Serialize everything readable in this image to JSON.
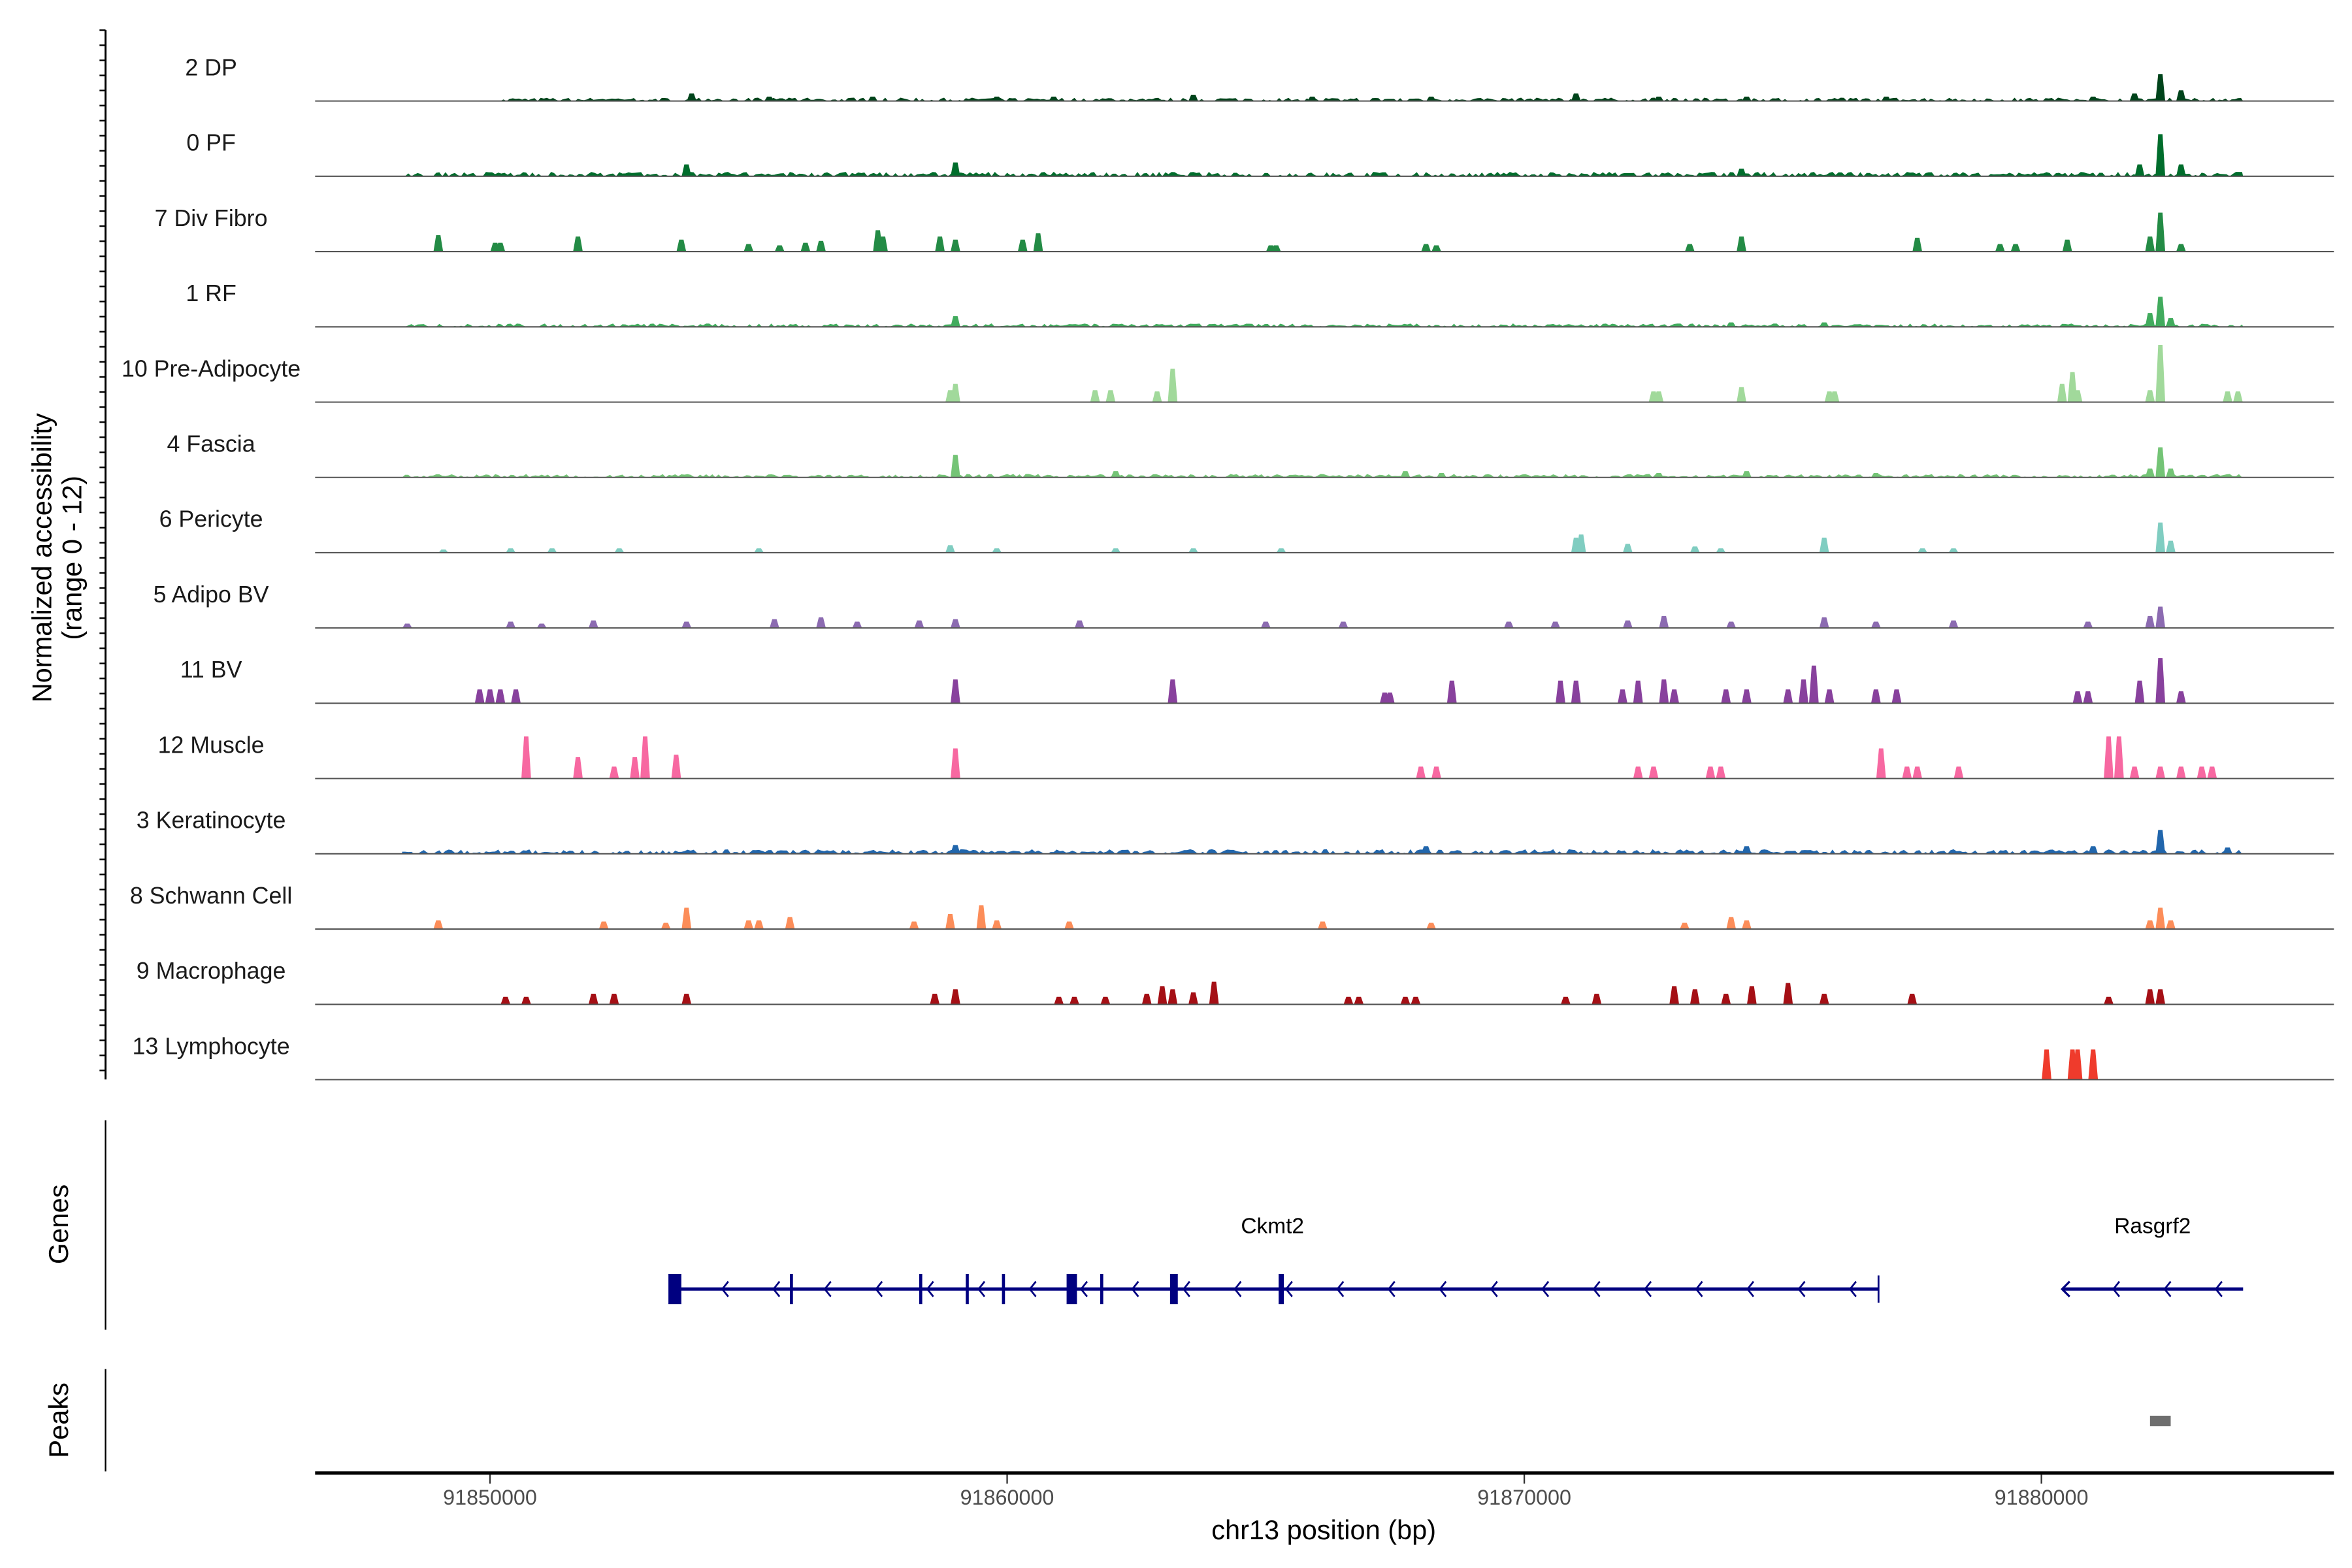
{
  "chart_data": {
    "type": "area",
    "title": "",
    "xlabel": "chr13 position (bp)",
    "ylabel": "Normalized accessibility",
    "ylabel_sub": "(range 0 - 12)",
    "ylim": [
      0,
      12
    ],
    "x_unit": "kb",
    "xlim_kb": [
      91846.6,
      91885.7
    ],
    "x_ticks": [
      {
        "value": 91850000,
        "label": "91850000"
      },
      {
        "value": 91860000,
        "label": "91860000"
      },
      {
        "value": 91870000,
        "label": "91870000"
      },
      {
        "value": 91880000,
        "label": "91880000"
      }
    ],
    "tracks": [
      {
        "name": "2 DP",
        "color": "#00441b",
        "bg": [
          91850.2,
          91883.9,
          0.3
        ],
        "peaks": [
          [
            91853.9,
            1.2
          ],
          [
            91855.4,
            0.7
          ],
          [
            91857.4,
            0.7
          ],
          [
            91859.8,
            0.7
          ],
          [
            91860.9,
            0.7
          ],
          [
            91863.6,
            1
          ],
          [
            91865.9,
            0.7
          ],
          [
            91868.2,
            0.7
          ],
          [
            91871.0,
            1.2
          ],
          [
            91872.6,
            0.7
          ],
          [
            91874.3,
            0.7
          ],
          [
            91877.0,
            0.7
          ],
          [
            91881.0,
            0.7
          ],
          [
            91881.8,
            1.2
          ],
          [
            91882.3,
            4.3
          ],
          [
            91882.7,
            1.7
          ]
        ]
      },
      {
        "name": "0 PF",
        "color": "#006d2c",
        "bg": [
          91848.3,
          91883.9,
          0.4
        ],
        "peaks": [
          [
            91853.8,
            1.9
          ],
          [
            91859.0,
            2.2
          ],
          [
            91874.2,
            1.2
          ],
          [
            91881.9,
            1.9
          ],
          [
            91882.3,
            6.7
          ],
          [
            91882.7,
            1.9
          ]
        ]
      },
      {
        "name": "7 Div Fibro",
        "color": "#238b45",
        "bg": null,
        "peaks": [
          [
            91849.0,
            2.6
          ],
          [
            91850.1,
            1.4
          ],
          [
            91850.2,
            1.4
          ],
          [
            91851.7,
            2.4
          ],
          [
            91853.7,
            1.9
          ],
          [
            91855.0,
            1.2
          ],
          [
            91855.6,
            1
          ],
          [
            91856.1,
            1.4
          ],
          [
            91856.4,
            1.7
          ],
          [
            91857.5,
            3.4
          ],
          [
            91857.6,
            2.4
          ],
          [
            91858.7,
            2.4
          ],
          [
            91859.0,
            1.9
          ],
          [
            91860.3,
            1.9
          ],
          [
            91860.6,
            2.9
          ],
          [
            91865.1,
            1
          ],
          [
            91865.2,
            1
          ],
          [
            91868.1,
            1.2
          ],
          [
            91868.3,
            1
          ],
          [
            91873.2,
            1.2
          ],
          [
            91874.2,
            2.4
          ],
          [
            91877.6,
            2.2
          ],
          [
            91879.2,
            1.2
          ],
          [
            91879.5,
            1.2
          ],
          [
            91880.5,
            1.9
          ],
          [
            91882.1,
            2.4
          ],
          [
            91882.3,
            6.2
          ],
          [
            91882.7,
            1.2
          ]
        ]
      },
      {
        "name": "1 RF",
        "color": "#41ab5d",
        "bg": [
          91848.3,
          91883.9,
          0.3
        ],
        "peaks": [
          [
            91859.0,
            1.7
          ],
          [
            91874.0,
            0.7
          ],
          [
            91875.8,
            0.7
          ],
          [
            91882.1,
            2.2
          ],
          [
            91882.3,
            4.8
          ],
          [
            91882.5,
            1.4
          ]
        ]
      },
      {
        "name": "10 Pre-Adipocyte",
        "color": "#a1d99b",
        "bg": null,
        "peaks": [
          [
            91858.9,
            1.9
          ],
          [
            91859.0,
            2.9
          ],
          [
            91861.7,
            1.9
          ],
          [
            91862.0,
            1.9
          ],
          [
            91862.9,
            1.7
          ],
          [
            91863.2,
            5.3
          ],
          [
            91872.5,
            1.7
          ],
          [
            91872.6,
            1.7
          ],
          [
            91874.2,
            2.4
          ],
          [
            91875.9,
            1.7
          ],
          [
            91876.0,
            1.7
          ],
          [
            91880.4,
            2.9
          ],
          [
            91880.6,
            4.8
          ],
          [
            91880.7,
            1.9
          ],
          [
            91882.1,
            1.9
          ],
          [
            91882.3,
            9.1
          ],
          [
            91883.6,
            1.7
          ],
          [
            91883.8,
            1.7
          ]
        ]
      },
      {
        "name": "4 Fascia",
        "color": "#74c476",
        "bg": [
          91848.3,
          91883.9,
          0.3
        ],
        "peaks": [
          [
            91859.0,
            3.6
          ],
          [
            91862.1,
            1
          ],
          [
            91867.7,
            1
          ],
          [
            91868.4,
            0.7
          ],
          [
            91872.6,
            0.7
          ],
          [
            91874.3,
            1
          ],
          [
            91876.8,
            0.7
          ],
          [
            91882.1,
            1.4
          ],
          [
            91882.3,
            4.8
          ],
          [
            91882.5,
            1.4
          ]
        ]
      },
      {
        "name": "6 Pericyte",
        "color": "#80cdc1",
        "bg": null,
        "peaks": [
          [
            91849.1,
            0.5
          ],
          [
            91850.4,
            0.7
          ],
          [
            91851.2,
            0.7
          ],
          [
            91852.5,
            0.7
          ],
          [
            91855.2,
            0.7
          ],
          [
            91858.9,
            1.2
          ],
          [
            91859.8,
            0.7
          ],
          [
            91862.1,
            0.7
          ],
          [
            91863.6,
            0.7
          ],
          [
            91865.3,
            0.7
          ],
          [
            91871.0,
            2.4
          ],
          [
            91871.1,
            2.9
          ],
          [
            91872.0,
            1.4
          ],
          [
            91873.3,
            1
          ],
          [
            91873.8,
            0.7
          ],
          [
            91875.8,
            2.4
          ],
          [
            91877.7,
            0.7
          ],
          [
            91878.3,
            0.7
          ],
          [
            91882.3,
            4.8
          ],
          [
            91882.5,
            1.9
          ]
        ]
      },
      {
        "name": "5 Adipo BV",
        "color": "#8c6bb1",
        "bg": null,
        "peaks": [
          [
            91848.4,
            0.7
          ],
          [
            91850.4,
            1
          ],
          [
            91851.0,
            0.7
          ],
          [
            91852.0,
            1.2
          ],
          [
            91853.8,
            1
          ],
          [
            91855.5,
            1.4
          ],
          [
            91856.4,
            1.7
          ],
          [
            91857.1,
            1
          ],
          [
            91858.3,
            1.2
          ],
          [
            91859.0,
            1.4
          ],
          [
            91861.4,
            1.2
          ],
          [
            91865.0,
            1
          ],
          [
            91866.5,
            1
          ],
          [
            91869.7,
            1
          ],
          [
            91870.6,
            1
          ],
          [
            91872.0,
            1.2
          ],
          [
            91872.7,
            1.9
          ],
          [
            91874.0,
            1
          ],
          [
            91875.8,
            1.7
          ],
          [
            91876.8,
            1
          ],
          [
            91878.3,
            1.2
          ],
          [
            91880.9,
            1
          ],
          [
            91882.1,
            1.9
          ],
          [
            91882.3,
            3.4
          ]
        ]
      },
      {
        "name": "11 BV",
        "color": "#88419d",
        "bg": null,
        "peaks": [
          [
            91849.8,
            2.2
          ],
          [
            91850.0,
            2.2
          ],
          [
            91850.2,
            2.2
          ],
          [
            91850.5,
            2.2
          ],
          [
            91859.0,
            3.8
          ],
          [
            91863.2,
            3.8
          ],
          [
            91867.3,
            1.7
          ],
          [
            91867.4,
            1.7
          ],
          [
            91868.6,
            3.6
          ],
          [
            91870.7,
            3.6
          ],
          [
            91871.0,
            3.6
          ],
          [
            91871.9,
            2.2
          ],
          [
            91872.2,
            3.6
          ],
          [
            91872.7,
            3.8
          ],
          [
            91872.9,
            2.2
          ],
          [
            91873.9,
            2.2
          ],
          [
            91874.3,
            2.2
          ],
          [
            91875.1,
            2.2
          ],
          [
            91875.4,
            3.8
          ],
          [
            91875.6,
            6
          ],
          [
            91875.9,
            2.2
          ],
          [
            91876.8,
            2.2
          ],
          [
            91877.2,
            2.2
          ],
          [
            91880.7,
            1.9
          ],
          [
            91880.9,
            1.9
          ],
          [
            91881.9,
            3.6
          ],
          [
            91882.3,
            7.2
          ],
          [
            91882.7,
            1.9
          ]
        ]
      },
      {
        "name": "12 Muscle",
        "color": "#f768a1",
        "bg": null,
        "peaks": [
          [
            91850.7,
            6.7
          ],
          [
            91851.7,
            3.4
          ],
          [
            91852.4,
            1.9
          ],
          [
            91852.8,
            3.4
          ],
          [
            91853.0,
            6.7
          ],
          [
            91853.6,
            3.8
          ],
          [
            91859.0,
            4.8
          ],
          [
            91868.0,
            1.9
          ],
          [
            91868.3,
            1.9
          ],
          [
            91872.2,
            1.9
          ],
          [
            91872.5,
            1.9
          ],
          [
            91873.6,
            1.9
          ],
          [
            91873.8,
            1.9
          ],
          [
            91876.9,
            4.8
          ],
          [
            91877.4,
            1.9
          ],
          [
            91877.6,
            1.9
          ],
          [
            91878.4,
            1.9
          ],
          [
            91881.3,
            6.7
          ],
          [
            91881.5,
            6.7
          ],
          [
            91881.8,
            1.9
          ],
          [
            91882.3,
            1.9
          ],
          [
            91882.7,
            1.9
          ],
          [
            91883.1,
            1.9
          ],
          [
            91883.3,
            1.9
          ]
        ]
      },
      {
        "name": "3 Keratinocyte",
        "color": "#2166ac",
        "bg": [
          91848.3,
          91883.9,
          0.4
        ],
        "peaks": [
          [
            91859.0,
            1.4
          ],
          [
            91868.1,
            1.2
          ],
          [
            91874.3,
            1.2
          ],
          [
            91881.0,
            1.2
          ],
          [
            91882.3,
            3.8
          ],
          [
            91883.6,
            1
          ]
        ]
      },
      {
        "name": "8 Schwann Cell",
        "color": "#fc8d59",
        "bg": null,
        "peaks": [
          [
            91849.0,
            1.4
          ],
          [
            91852.2,
            1.2
          ],
          [
            91853.4,
            1
          ],
          [
            91853.8,
            3.4
          ],
          [
            91855.0,
            1.4
          ],
          [
            91855.2,
            1.4
          ],
          [
            91855.8,
            1.9
          ],
          [
            91858.2,
            1.2
          ],
          [
            91858.9,
            2.4
          ],
          [
            91859.5,
            3.8
          ],
          [
            91859.8,
            1.4
          ],
          [
            91861.2,
            1.2
          ],
          [
            91866.1,
            1.2
          ],
          [
            91868.2,
            1
          ],
          [
            91873.1,
            1
          ],
          [
            91874.0,
            1.9
          ],
          [
            91874.3,
            1.4
          ],
          [
            91882.1,
            1.4
          ],
          [
            91882.3,
            3.4
          ],
          [
            91882.5,
            1.4
          ]
        ]
      },
      {
        "name": "9 Macrophage",
        "color": "#a50f15",
        "bg": null,
        "peaks": [
          [
            91850.3,
            1.2
          ],
          [
            91850.7,
            1.2
          ],
          [
            91852.0,
            1.7
          ],
          [
            91852.4,
            1.7
          ],
          [
            91853.8,
            1.7
          ],
          [
            91858.6,
            1.7
          ],
          [
            91859.0,
            2.4
          ],
          [
            91861.0,
            1.2
          ],
          [
            91861.3,
            1.2
          ],
          [
            91861.9,
            1.2
          ],
          [
            91862.7,
            1.7
          ],
          [
            91863.0,
            2.9
          ],
          [
            91863.2,
            2.4
          ],
          [
            91863.6,
            1.9
          ],
          [
            91864.0,
            3.6
          ],
          [
            91866.6,
            1.2
          ],
          [
            91866.8,
            1.2
          ],
          [
            91867.7,
            1.2
          ],
          [
            91867.9,
            1.2
          ],
          [
            91870.8,
            1.2
          ],
          [
            91871.4,
            1.7
          ],
          [
            91872.9,
            2.9
          ],
          [
            91873.3,
            2.4
          ],
          [
            91873.9,
            1.7
          ],
          [
            91874.4,
            2.9
          ],
          [
            91875.1,
            3.4
          ],
          [
            91875.8,
            1.7
          ],
          [
            91877.5,
            1.7
          ],
          [
            91881.3,
            1.2
          ],
          [
            91882.1,
            2.4
          ],
          [
            91882.3,
            2.4
          ]
        ]
      },
      {
        "name": "13 Lymphocyte",
        "color": "#ef3b2c",
        "bg": null,
        "peaks": [
          [
            91880.1,
            4.8
          ],
          [
            91880.6,
            4.8
          ],
          [
            91880.7,
            4.8
          ],
          [
            91881.0,
            4.8
          ]
        ]
      }
    ],
    "genes_panel": {
      "label": "Genes",
      "color": "#000080",
      "genes": [
        {
          "name": "Ckmt2",
          "strand": "-",
          "start_kb": 91853.5,
          "end_kb": 91876.85,
          "exons_kb": [
            [
              91853.45,
              91853.7
            ],
            [
              91855.8,
              91855.85
            ],
            [
              91858.3,
              91858.35
            ],
            [
              91859.2,
              91859.25
            ],
            [
              91859.9,
              91859.95
            ],
            [
              91861.15,
              91861.35
            ],
            [
              91861.8,
              91861.85
            ],
            [
              91863.15,
              91863.3
            ],
            [
              91865.25,
              91865.35
            ]
          ]
        },
        {
          "name": "Rasgrf2",
          "strand": "-",
          "start_kb": 91880.4,
          "end_kb": 91883.9,
          "exons_kb": []
        }
      ]
    },
    "peaks_panel": {
      "label": "Peaks",
      "color": "#6e6e6e",
      "regions_kb": [
        [
          91882.1,
          91882.5
        ]
      ]
    }
  }
}
